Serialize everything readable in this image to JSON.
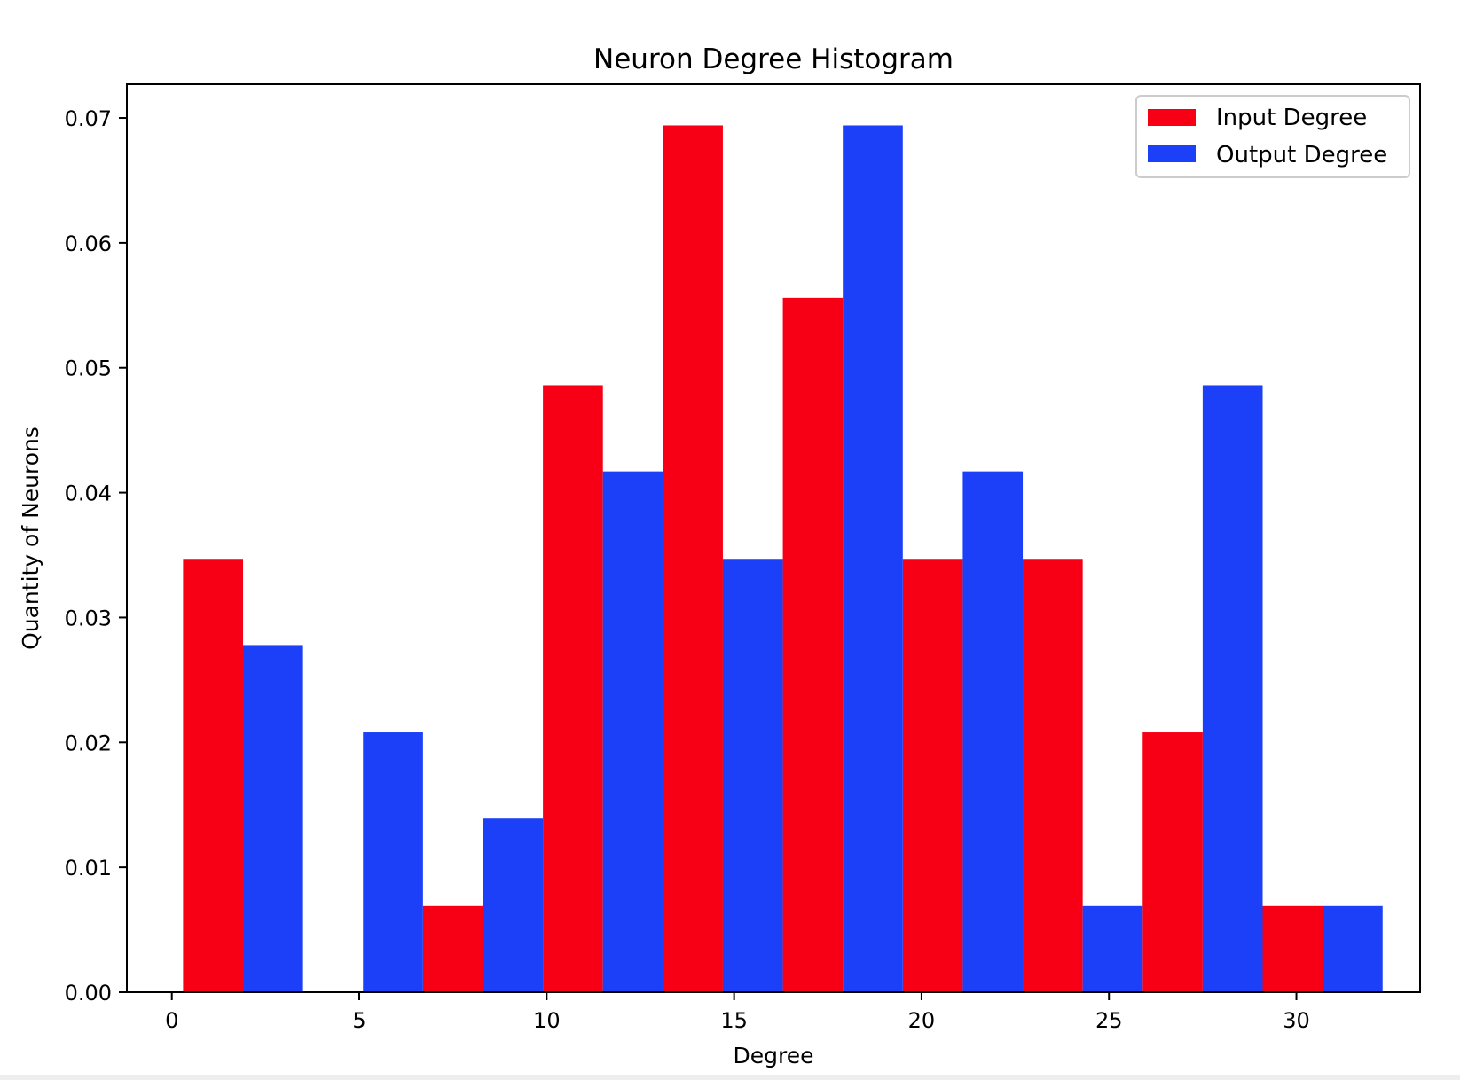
{
  "chart_data": {
    "type": "bar",
    "title": "Neuron Degree Histogram",
    "xlabel": "Degree",
    "ylabel": "Quantity of Neurons",
    "xlim": [
      -1.2,
      33.3
    ],
    "ylim": [
      0,
      0.0727
    ],
    "x_ticks": [
      0,
      5,
      10,
      15,
      20,
      25,
      30
    ],
    "x_tick_labels": [
      "0",
      "5",
      "10",
      "15",
      "20",
      "25",
      "30"
    ],
    "y_ticks": [
      0,
      0.01,
      0.02,
      0.03,
      0.04,
      0.05,
      0.06,
      0.07
    ],
    "y_tick_labels": [
      "0.00",
      "0.01",
      "0.02",
      "0.03",
      "0.04",
      "0.05",
      "0.06",
      "0.07"
    ],
    "bin_edges": [
      0.3,
      3.5,
      6.7,
      9.9,
      13.1,
      16.3,
      19.5,
      22.7,
      25.9,
      29.1,
      32.3
    ],
    "grid": false,
    "legend": {
      "position": "top-right"
    },
    "series": [
      {
        "name": "Input Degree",
        "color": "#f70015",
        "values": [
          0.0347,
          0.0,
          0.0069,
          0.0486,
          0.0694,
          0.0556,
          0.0347,
          0.0347,
          0.0208,
          0.0069
        ]
      },
      {
        "name": "Output Degree",
        "color": "#1c40f7",
        "values": [
          0.0278,
          0.0208,
          0.0139,
          0.0417,
          0.0347,
          0.0694,
          0.0417,
          0.0069,
          0.0486,
          0.0069
        ]
      }
    ]
  }
}
